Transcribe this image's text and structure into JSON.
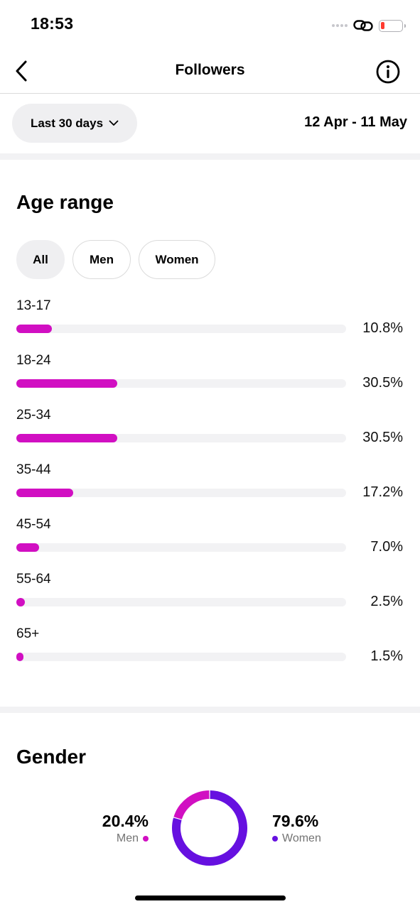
{
  "status_bar": {
    "time": "18:53",
    "icons": [
      "signal-dots-icon",
      "link-icon",
      "battery-low-icon"
    ],
    "battery_color": "#ff3b30"
  },
  "nav": {
    "title": "Followers",
    "back_icon": "chevron-left-icon",
    "info_icon": "info-icon"
  },
  "filter": {
    "range_label": "Last 30 days",
    "range_icon": "chevron-down-icon",
    "date_range": "12 Apr - 11 May"
  },
  "age_section": {
    "title": "Age range",
    "tabs": [
      {
        "label": "All",
        "active": true
      },
      {
        "label": "Men",
        "active": false
      },
      {
        "label": "Women",
        "active": false
      }
    ],
    "bar_color": "#d10fc2",
    "rows": [
      {
        "label": "13-17",
        "value": 10.8,
        "value_text": "10.8%"
      },
      {
        "label": "18-24",
        "value": 30.5,
        "value_text": "30.5%"
      },
      {
        "label": "25-34",
        "value": 30.5,
        "value_text": "30.5%"
      },
      {
        "label": "35-44",
        "value": 17.2,
        "value_text": "17.2%"
      },
      {
        "label": "45-54",
        "value": 7.0,
        "value_text": "7.0%"
      },
      {
        "label": "55-64",
        "value": 2.5,
        "value_text": "2.5%"
      },
      {
        "label": "65+",
        "value": 1.5,
        "value_text": "1.5%"
      }
    ]
  },
  "gender_section": {
    "title": "Gender",
    "men": {
      "percent": 20.4,
      "percent_text": "20.4%",
      "label": "Men",
      "color": "#d10fc2"
    },
    "women": {
      "percent": 79.6,
      "percent_text": "79.6%",
      "label": "Women",
      "color": "#6610e0"
    }
  }
}
